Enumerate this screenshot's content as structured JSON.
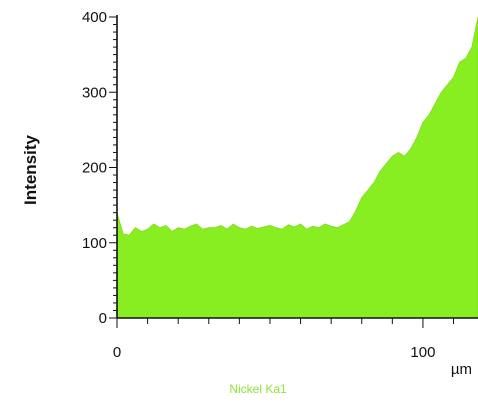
{
  "chart_data": {
    "type": "area",
    "title": "",
    "xlabel": "µm",
    "ylabel": "Intensity",
    "xlim": [
      0,
      118
    ],
    "ylim": [
      0,
      400
    ],
    "x_ticks": [
      0,
      100
    ],
    "y_ticks": [
      0,
      100,
      200,
      300,
      400
    ],
    "grid": false,
    "legend": "none",
    "fill_color": "#88ee22",
    "series": [
      {
        "name": "Nickel Ka1",
        "x": [
          0,
          2,
          4,
          6,
          8,
          10,
          12,
          14,
          16,
          18,
          20,
          22,
          24,
          26,
          28,
          30,
          32,
          34,
          36,
          38,
          40,
          42,
          44,
          46,
          48,
          50,
          52,
          54,
          56,
          58,
          60,
          62,
          64,
          66,
          68,
          70,
          72,
          74,
          76,
          78,
          80,
          82,
          84,
          86,
          88,
          90,
          92,
          94,
          96,
          98,
          100,
          102,
          104,
          106,
          108,
          110,
          112,
          114,
          116,
          118
        ],
        "values": [
          140,
          112,
          110,
          120,
          115,
          118,
          125,
          120,
          123,
          115,
          120,
          118,
          122,
          125,
          118,
          120,
          120,
          123,
          118,
          125,
          120,
          118,
          122,
          119,
          121,
          123,
          120,
          118,
          124,
          121,
          125,
          118,
          122,
          120,
          125,
          122,
          120,
          124,
          128,
          142,
          160,
          170,
          180,
          195,
          205,
          215,
          220,
          215,
          225,
          240,
          260,
          270,
          285,
          300,
          310,
          320,
          340,
          345,
          360,
          400
        ]
      }
    ]
  }
}
